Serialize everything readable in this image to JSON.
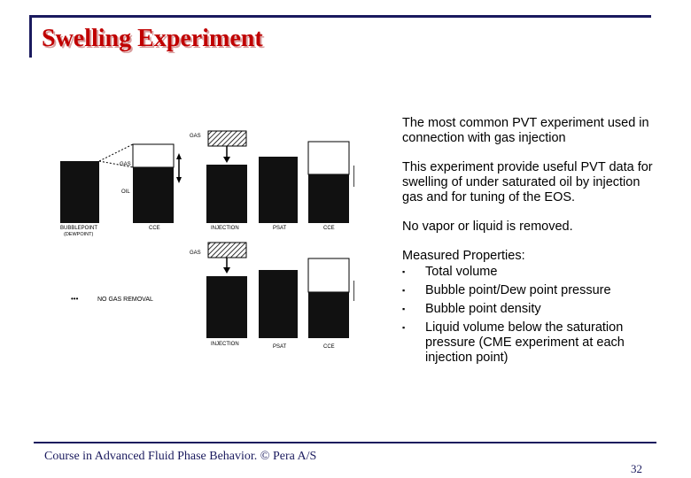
{
  "title": "Swelling Experiment",
  "content": {
    "para1": "The most common PVT experiment used in connection with gas injection",
    "para2": "This experiment provide useful PVT data for swelling of under saturated oil by injection gas and for tuning of the EOS.",
    "para3": "No vapor or liquid is removed.",
    "props_heading": "Measured Properties:",
    "props": [
      "Total volume",
      "Bubble point/Dew point pressure",
      "Bubble point density",
      "Liquid volume below the saturation pressure (CME experiment at each injection point)"
    ],
    "bullet_glyph": "▪"
  },
  "diagram": {
    "labels": {
      "gas_top": "GAS",
      "gas_cell": "GAS",
      "oil": "OIL",
      "bubblepoint": "BUBBLEPOINT",
      "dewpoint": "(DEWPOINT)",
      "cce1": "CCE",
      "injection1": "INJECTION",
      "psat1": "PSAT",
      "cce2": "CCE",
      "gas_bottom": "GAS",
      "no_gas_removal": "NO GAS REMOVAL",
      "injection2": "INJECTION",
      "psat2": "PSAT",
      "cce3": "CCE"
    }
  },
  "footer": {
    "course": "Course in Advanced Fluid Phase Behavior. © Pera A/S",
    "page": "32"
  }
}
